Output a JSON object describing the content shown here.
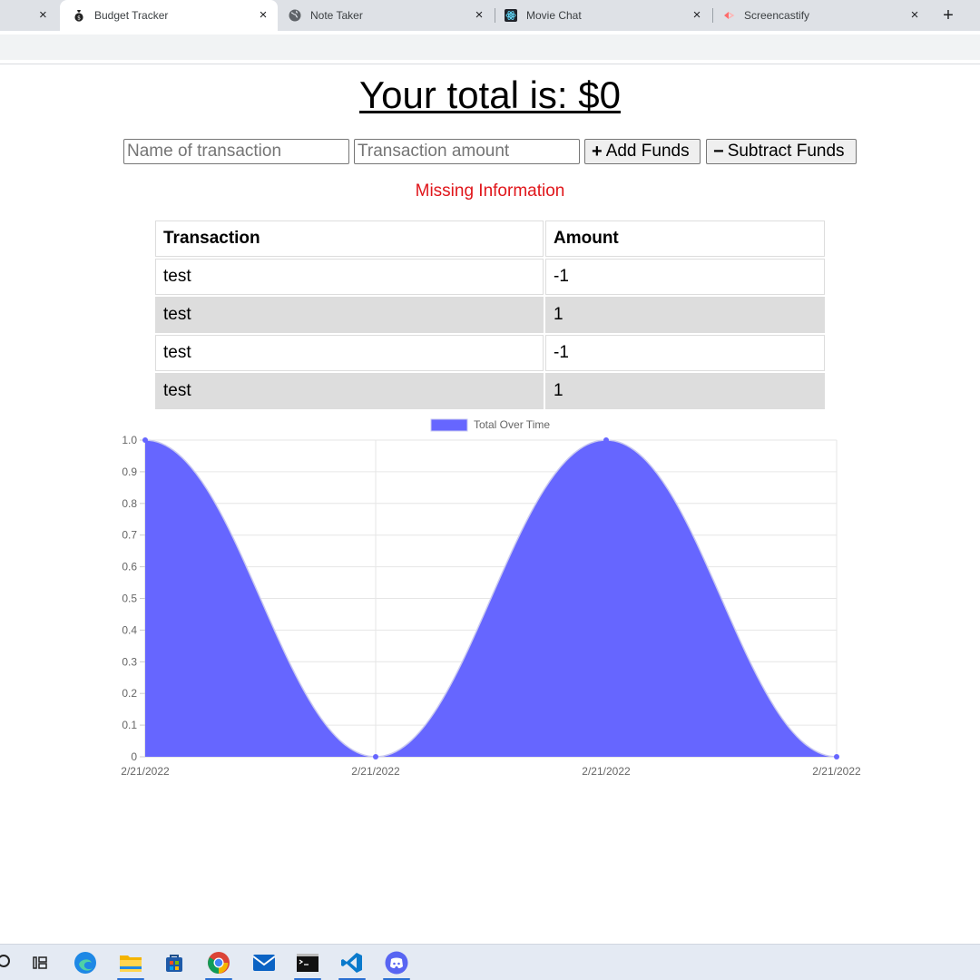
{
  "browser": {
    "tabs": [
      {
        "title": "Budget Tracker",
        "active": true
      },
      {
        "title": "Note Taker",
        "active": false
      },
      {
        "title": "Movie Chat",
        "active": false
      },
      {
        "title": "Screencastify",
        "active": false
      }
    ],
    "close_glyph": "×",
    "newtab_glyph": "+"
  },
  "page": {
    "total_text": "Your total is: $0",
    "name_placeholder": "Name of transaction",
    "amount_placeholder": "Transaction amount",
    "add_icon": "+",
    "add_label": "Add Funds",
    "subtract_icon": "−",
    "subtract_label": "Subtract Funds",
    "error_text": "Missing Information",
    "table": {
      "headers": [
        "Transaction",
        "Amount"
      ],
      "rows": [
        {
          "name": "test",
          "amount": "-1"
        },
        {
          "name": "test",
          "amount": "1"
        },
        {
          "name": "test",
          "amount": "-1"
        },
        {
          "name": "test",
          "amount": "1"
        }
      ]
    }
  },
  "chart_data": {
    "type": "area",
    "x": [
      "2/21/2022",
      "2/21/2022",
      "2/21/2022",
      "2/21/2022"
    ],
    "series": [
      {
        "name": "Total Over Time",
        "values": [
          1,
          0,
          1,
          0
        ],
        "color": "#6666ff"
      }
    ],
    "ylim": [
      0,
      1
    ],
    "yticks": [
      "0",
      "0.1",
      "0.2",
      "0.3",
      "0.4",
      "0.5",
      "0.6",
      "0.7",
      "0.8",
      "0.9",
      "1.0"
    ],
    "grid": true,
    "legend": "top-center"
  },
  "taskbar": {
    "icons": [
      "search-icon",
      "task-view-icon",
      "edge-icon",
      "file-explorer-icon",
      "store-icon",
      "chrome-icon",
      "mail-icon",
      "terminal-icon",
      "vscode-icon",
      "discord-icon"
    ]
  }
}
